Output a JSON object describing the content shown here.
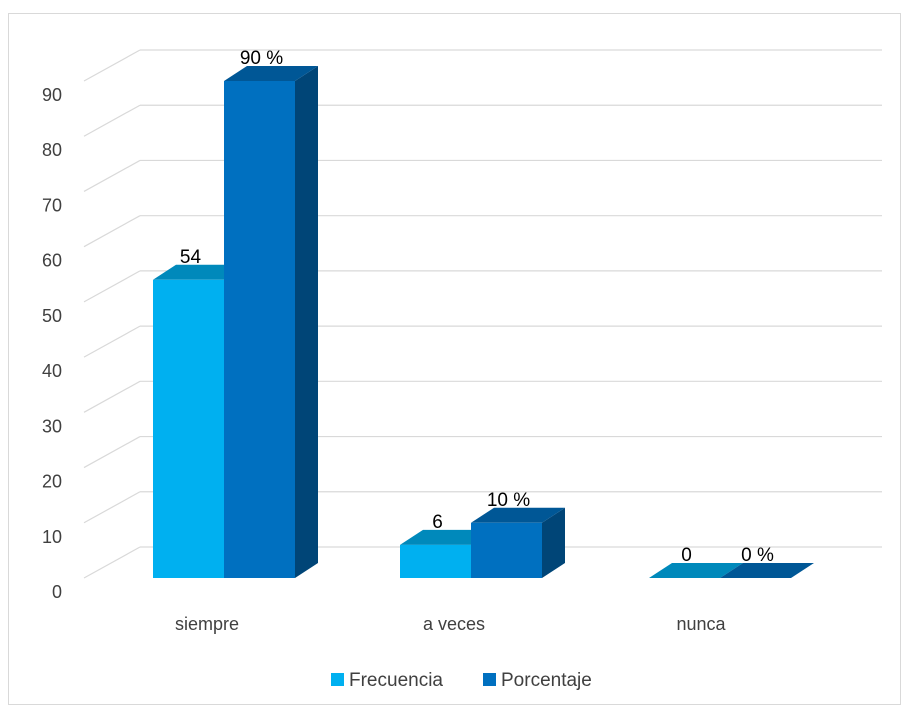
{
  "chart_data": {
    "type": "bar",
    "categories": [
      "siempre",
      "a veces",
      "nunca"
    ],
    "series": [
      {
        "name": "Frecuencia",
        "values": [
          54,
          6,
          0
        ],
        "labels": [
          "54",
          "6",
          "0"
        ],
        "color": "#00b0f0"
      },
      {
        "name": "Porcentaje",
        "values": [
          90,
          10,
          0
        ],
        "labels": [
          "90 %",
          "10 %",
          "0 %"
        ],
        "color": "#0070c0"
      }
    ],
    "ylim": [
      0,
      90
    ],
    "yticks": [
      0,
      10,
      20,
      30,
      40,
      50,
      60,
      70,
      80,
      90
    ],
    "grid": true,
    "legend_position": "bottom",
    "style": "3d-clustered-column"
  }
}
